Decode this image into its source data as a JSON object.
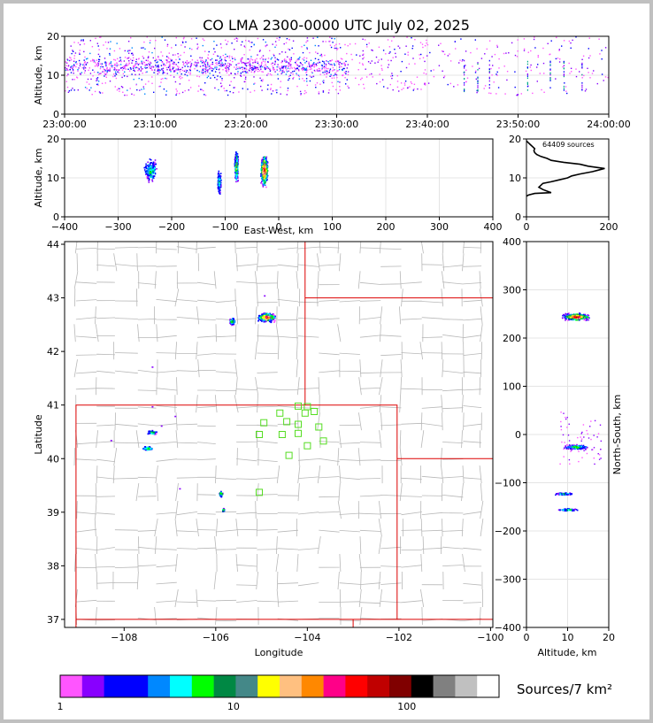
{
  "title": "CO LMA 2300-0000 UTC July 02, 2025",
  "source_count": "64409 sources",
  "colorbar": {
    "label": "Sources/7 km²",
    "ticks": [
      "1",
      "10",
      "100"
    ],
    "colors": [
      "#ff55ff",
      "#8800ff",
      "#0000ff",
      "#0000ff",
      "#0088ff",
      "#00ffff",
      "#00ff00",
      "#008844",
      "#448888",
      "#ffff00",
      "#ffc080",
      "#ff8800",
      "#ff0088",
      "#ff0000",
      "#c00000",
      "#800000",
      "#000000",
      "#808080",
      "#c0c0c0",
      "#ffffff"
    ]
  },
  "chart_data": [
    {
      "type": "scatter",
      "panel": "altitude-time",
      "xlabel": "",
      "ylabel": "Altitude, km",
      "xlim": [
        "23:00:00",
        "24:00:00"
      ],
      "ylim": [
        0,
        20
      ],
      "x_ticks": [
        "23:00:00",
        "23:10:00",
        "23:20:00",
        "23:30:00",
        "23:40:00",
        "23:50:00",
        "24:00:00"
      ],
      "y_ticks": [
        "0",
        "10",
        "20"
      ],
      "activity": [
        {
          "start_min": 0,
          "end_min": 31,
          "alt_range": [
            5,
            20
          ],
          "density": "high"
        },
        {
          "start_min": 31,
          "end_min": 40,
          "alt_range": [
            6,
            20
          ],
          "density": "low"
        },
        {
          "start_min": 40,
          "end_min": 60,
          "alt_range": [
            5,
            20
          ],
          "density": "sparse"
        }
      ]
    },
    {
      "type": "scatter",
      "panel": "altitude-eastwest",
      "xlabel": "East-West, km",
      "ylabel": "Altitude, km",
      "xlim": [
        -400,
        400
      ],
      "ylim": [
        0,
        20
      ],
      "x_ticks": [
        "−400",
        "−300",
        "−200",
        "−100",
        "0",
        "100",
        "200",
        "300",
        "400"
      ],
      "y_ticks": [
        "0",
        "10",
        "20"
      ],
      "clusters": [
        {
          "x": -240,
          "alt": 12
        },
        {
          "x": -112,
          "alt": 9
        },
        {
          "x": -80,
          "alt": 13
        },
        {
          "x": -28,
          "alt": 12
        }
      ]
    },
    {
      "type": "line",
      "panel": "altitude-histogram",
      "xlabel": "",
      "ylabel": "",
      "xlim": [
        0,
        200
      ],
      "ylim": [
        0,
        20
      ],
      "x_ticks": [
        "0",
        "200"
      ],
      "y_ticks": [
        "0",
        "10",
        "20"
      ],
      "x": [
        0,
        5,
        20,
        60,
        40,
        30,
        40,
        60,
        80,
        100,
        110,
        130,
        160,
        175,
        190,
        150,
        130,
        90,
        60,
        50,
        35,
        25,
        20,
        18,
        20,
        15,
        10,
        5,
        0
      ],
      "y": [
        5.3,
        5.6,
        6,
        6.2,
        7,
        7.6,
        8.6,
        9,
        9.5,
        10,
        10.5,
        11,
        11.6,
        12,
        12.4,
        13,
        13.5,
        14,
        14.5,
        15,
        15.5,
        16,
        16.5,
        17,
        17.5,
        18,
        18.5,
        19,
        19.5
      ]
    },
    {
      "type": "scatter",
      "panel": "plan-view",
      "xlabel": "Longitude",
      "ylabel": "Latitude",
      "xlim": [
        -109.3,
        -99.95
      ],
      "ylim": [
        36.85,
        44.05
      ],
      "x_ticks": [
        "−108",
        "−106",
        "−104",
        "−102",
        "−100"
      ],
      "y_ticks": [
        "37",
        "38",
        "39",
        "40",
        "41",
        "42",
        "43",
        "44"
      ],
      "clusters": [
        {
          "lon": -104.9,
          "lat": 42.65
        },
        {
          "lon": -105.65,
          "lat": 42.57
        },
        {
          "lon": -107.4,
          "lat": 40.5
        },
        {
          "lon": -107.5,
          "lat": 40.2
        },
        {
          "lon": -105.9,
          "lat": 39.35
        },
        {
          "lon": -105.85,
          "lat": 39.05
        }
      ],
      "stations": [
        {
          "lon": -104.0,
          "lat": 40.97
        },
        {
          "lon": -104.2,
          "lat": 40.98
        },
        {
          "lon": -104.05,
          "lat": 40.85
        },
        {
          "lon": -103.85,
          "lat": 40.88
        },
        {
          "lon": -104.6,
          "lat": 40.85
        },
        {
          "lon": -104.95,
          "lat": 40.67
        },
        {
          "lon": -104.45,
          "lat": 40.69
        },
        {
          "lon": -104.2,
          "lat": 40.64
        },
        {
          "lon": -103.75,
          "lat": 40.59
        },
        {
          "lon": -105.05,
          "lat": 40.45
        },
        {
          "lon": -104.55,
          "lat": 40.45
        },
        {
          "lon": -104.2,
          "lat": 40.47
        },
        {
          "lon": -103.65,
          "lat": 40.33
        },
        {
          "lon": -104.0,
          "lat": 40.24
        },
        {
          "lon": -104.4,
          "lat": 40.06
        },
        {
          "lon": -105.05,
          "lat": 39.37
        }
      ]
    },
    {
      "type": "scatter",
      "panel": "northsouth-altitude",
      "xlabel": "Altitude, km",
      "ylabel": "North-South, km",
      "xlim": [
        0,
        20
      ],
      "ylim": [
        -400,
        400
      ],
      "x_ticks": [
        "0",
        "10",
        "20"
      ],
      "y_ticks": [
        "−400",
        "−300",
        "−200",
        "−100",
        "0",
        "100",
        "200",
        "300",
        "400"
      ],
      "clusters": [
        {
          "alt": 12,
          "y": 245
        },
        {
          "alt": 12,
          "y": -25
        },
        {
          "alt": 9,
          "y": -122
        },
        {
          "alt": 10,
          "y": -155
        }
      ]
    }
  ]
}
